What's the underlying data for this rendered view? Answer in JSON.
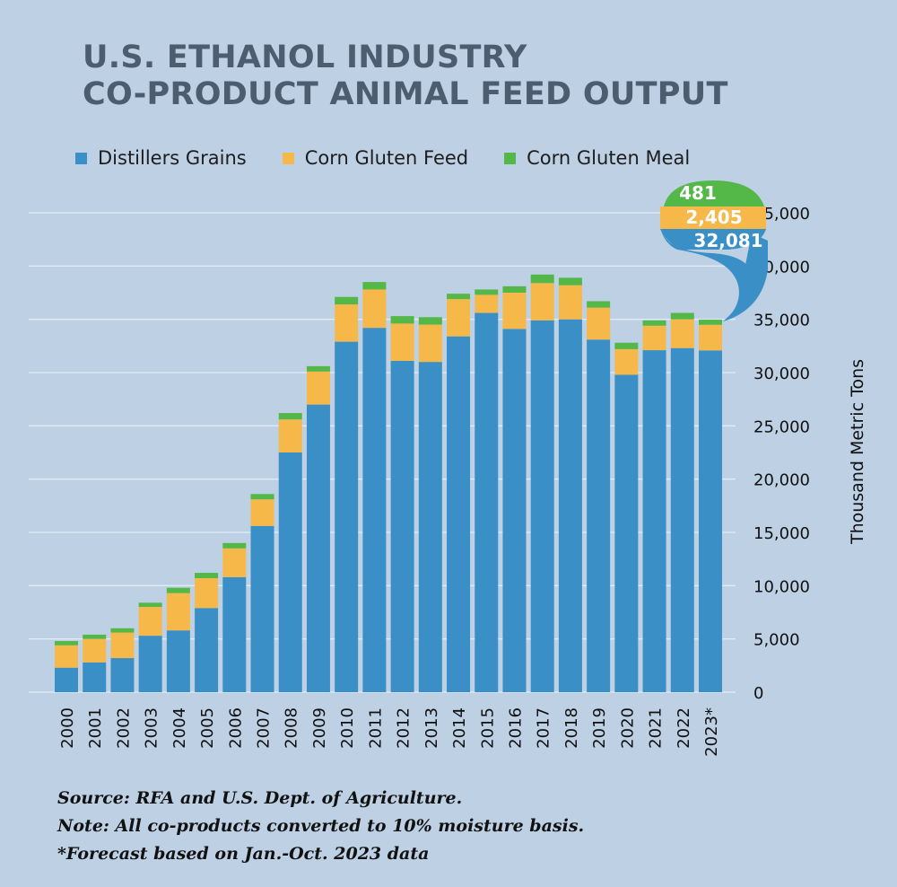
{
  "colors": {
    "background": "#bdd0e4",
    "distillers": "#3a8fc6",
    "corn_gluten_feed": "#f7b84a",
    "corn_gluten_meal": "#53b848",
    "grid": "#e3ebf3",
    "title": "#4b5d6e"
  },
  "title_lines": [
    "U.S. ETHANOL INDUSTRY",
    "CO-PRODUCT ANIMAL FEED OUTPUT"
  ],
  "legend": [
    "Distillers Grains",
    "Corn Gluten Feed",
    "Corn Gluten Meal"
  ],
  "callout": {
    "meal": "481",
    "feed": "2,405",
    "grains": "32,081"
  },
  "notes": [
    "Source: RFA and U.S. Dept. of Agriculture.",
    "Note: All co-products converted to 10% moisture basis.",
    "*Forecast based on Jan.-Oct. 2023 data"
  ],
  "chart_data": {
    "type": "bar",
    "stacked": true,
    "title": "U.S. ETHANOL INDUSTRY CO-PRODUCT ANIMAL FEED OUTPUT",
    "ylabel": "Thousand Metric Tons",
    "xlabel": "",
    "ylim": [
      0,
      45000
    ],
    "y_ticks": [
      "0",
      "5,000",
      "10,000",
      "15,000",
      "20,000",
      "25,000",
      "30,000",
      "35,000",
      "40,000",
      "45,000"
    ],
    "y_tick_values": [
      0,
      5000,
      10000,
      15000,
      20000,
      25000,
      30000,
      35000,
      40000,
      45000
    ],
    "y_axis_side": "right",
    "grid": true,
    "legend_position": "top",
    "categories": [
      "2000",
      "2001",
      "2002",
      "2003",
      "2004",
      "2005",
      "2006",
      "2007",
      "2008",
      "2009",
      "2010",
      "2011",
      "2012",
      "2013",
      "2014",
      "2015",
      "2016",
      "2017",
      "2018",
      "2019",
      "2020",
      "2021",
      "2022",
      "2023*"
    ],
    "series": [
      {
        "name": "Distillers Grains",
        "values": [
          2300,
          2800,
          3200,
          5300,
          5800,
          7900,
          10800,
          15600,
          22500,
          27000,
          32900,
          34200,
          31100,
          31000,
          33400,
          35600,
          34100,
          34900,
          35000,
          33100,
          29800,
          32100,
          32300,
          32081
        ]
      },
      {
        "name": "Corn Gluten Feed",
        "values": [
          2100,
          2200,
          2400,
          2700,
          3500,
          2800,
          2700,
          2500,
          3100,
          3100,
          3500,
          3600,
          3500,
          3500,
          3500,
          1700,
          3400,
          3500,
          3200,
          3000,
          2400,
          2300,
          2700,
          2405
        ]
      },
      {
        "name": "Corn Gluten Meal",
        "values": [
          400,
          400,
          400,
          400,
          500,
          500,
          500,
          500,
          600,
          500,
          700,
          700,
          700,
          700,
          500,
          500,
          600,
          800,
          700,
          600,
          600,
          500,
          600,
          481
        ]
      }
    ]
  }
}
